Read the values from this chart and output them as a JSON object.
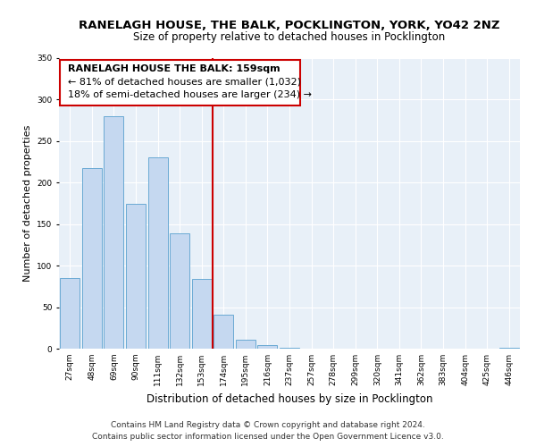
{
  "title": "RANELAGH HOUSE, THE BALK, POCKLINGTON, YORK, YO42 2NZ",
  "subtitle": "Size of property relative to detached houses in Pocklington",
  "xlabel": "Distribution of detached houses by size in Pocklington",
  "ylabel": "Number of detached properties",
  "bar_labels": [
    "27sqm",
    "48sqm",
    "69sqm",
    "90sqm",
    "111sqm",
    "132sqm",
    "153sqm",
    "174sqm",
    "195sqm",
    "216sqm",
    "237sqm",
    "257sqm",
    "278sqm",
    "299sqm",
    "320sqm",
    "341sqm",
    "362sqm",
    "383sqm",
    "404sqm",
    "425sqm",
    "446sqm"
  ],
  "bar_values": [
    85,
    218,
    280,
    175,
    231,
    139,
    84,
    41,
    11,
    4,
    1,
    0,
    0,
    0,
    0,
    0,
    0,
    0,
    0,
    0,
    1
  ],
  "bar_color": "#c5d8f0",
  "bar_edge_color": "#6aaad4",
  "vline_x_index": 6,
  "vline_color": "#cc0000",
  "ylim": [
    0,
    350
  ],
  "yticks": [
    0,
    50,
    100,
    150,
    200,
    250,
    300,
    350
  ],
  "annotation_title": "RANELAGH HOUSE THE BALK: 159sqm",
  "annotation_line1": "← 81% of detached houses are smaller (1,032)",
  "annotation_line2": "18% of semi-detached houses are larger (234) →",
  "annotation_box_color": "#ffffff",
  "annotation_box_edge": "#cc0000",
  "footer_line1": "Contains HM Land Registry data © Crown copyright and database right 2024.",
  "footer_line2": "Contains public sector information licensed under the Open Government Licence v3.0.",
  "title_fontsize": 9.5,
  "subtitle_fontsize": 8.5,
  "ylabel_fontsize": 8,
  "xlabel_fontsize": 8.5,
  "tick_fontsize": 6.5,
  "footer_fontsize": 6.5,
  "annotation_title_fontsize": 8,
  "annotation_text_fontsize": 8
}
